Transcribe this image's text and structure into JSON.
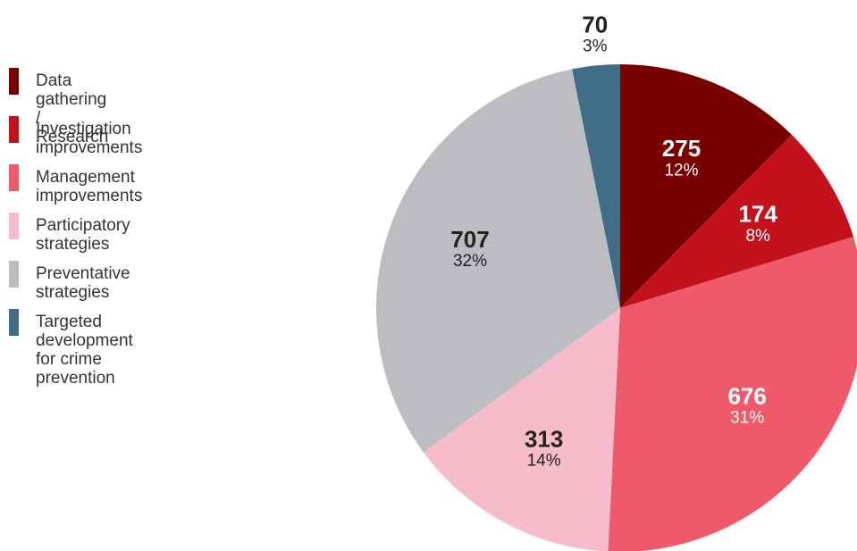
{
  "chart_data": {
    "type": "pie",
    "categories": [
      "Data gathering / Research",
      "Investigation improvements",
      "Management improvements",
      "Participatory strategies",
      "Preventative strategies",
      "Targeted development\nfor crime prevention"
    ],
    "values": [
      275,
      174,
      676,
      313,
      707,
      70
    ],
    "percent_labels": [
      "12%",
      "8%",
      "31%",
      "14%",
      "32%",
      "3%"
    ],
    "colors": [
      "#7a0000",
      "#c3121c",
      "#ef5a6a",
      "#f7bccb",
      "#bcbdc1",
      "#3f6e86"
    ],
    "legend": "left"
  }
}
